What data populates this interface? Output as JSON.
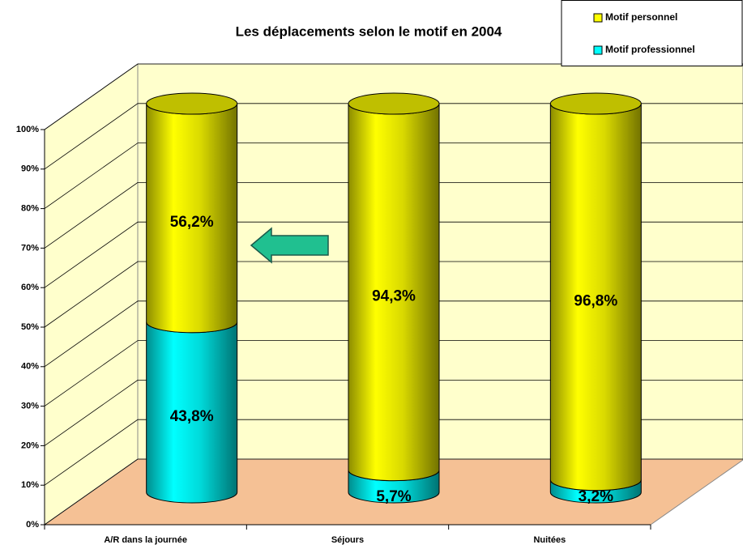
{
  "chart_data": {
    "type": "bar3d_stacked",
    "title": "Les déplacements selon le motif en 2004",
    "categories": [
      "A/R dans la journée",
      "Séjours",
      "Nuitées"
    ],
    "series": [
      {
        "name": "Motif professionnel",
        "color": "#00ffff",
        "values": [
          43.8,
          5.7,
          3.2
        ],
        "value_labels": [
          "43,8%",
          "5,7%",
          "3,2%"
        ]
      },
      {
        "name": "Motif personnel",
        "color": "#ffff00",
        "values": [
          56.2,
          94.3,
          96.8
        ],
        "value_labels": [
          "56,2%",
          "94,3%",
          "96,8%"
        ]
      }
    ],
    "ylim": [
      0,
      100
    ],
    "yticks": [
      {
        "value": 0,
        "label": "0%"
      },
      {
        "value": 10,
        "label": "10%"
      },
      {
        "value": 20,
        "label": "20%"
      },
      {
        "value": 30,
        "label": "30%"
      },
      {
        "value": 40,
        "label": "40%"
      },
      {
        "value": 50,
        "label": "50%"
      },
      {
        "value": 60,
        "label": "60%"
      },
      {
        "value": 70,
        "label": "70%"
      },
      {
        "value": 80,
        "label": "80%"
      },
      {
        "value": 90,
        "label": "90%"
      },
      {
        "value": 100,
        "label": "100%"
      }
    ],
    "grid": true,
    "legend": "top-right"
  }
}
